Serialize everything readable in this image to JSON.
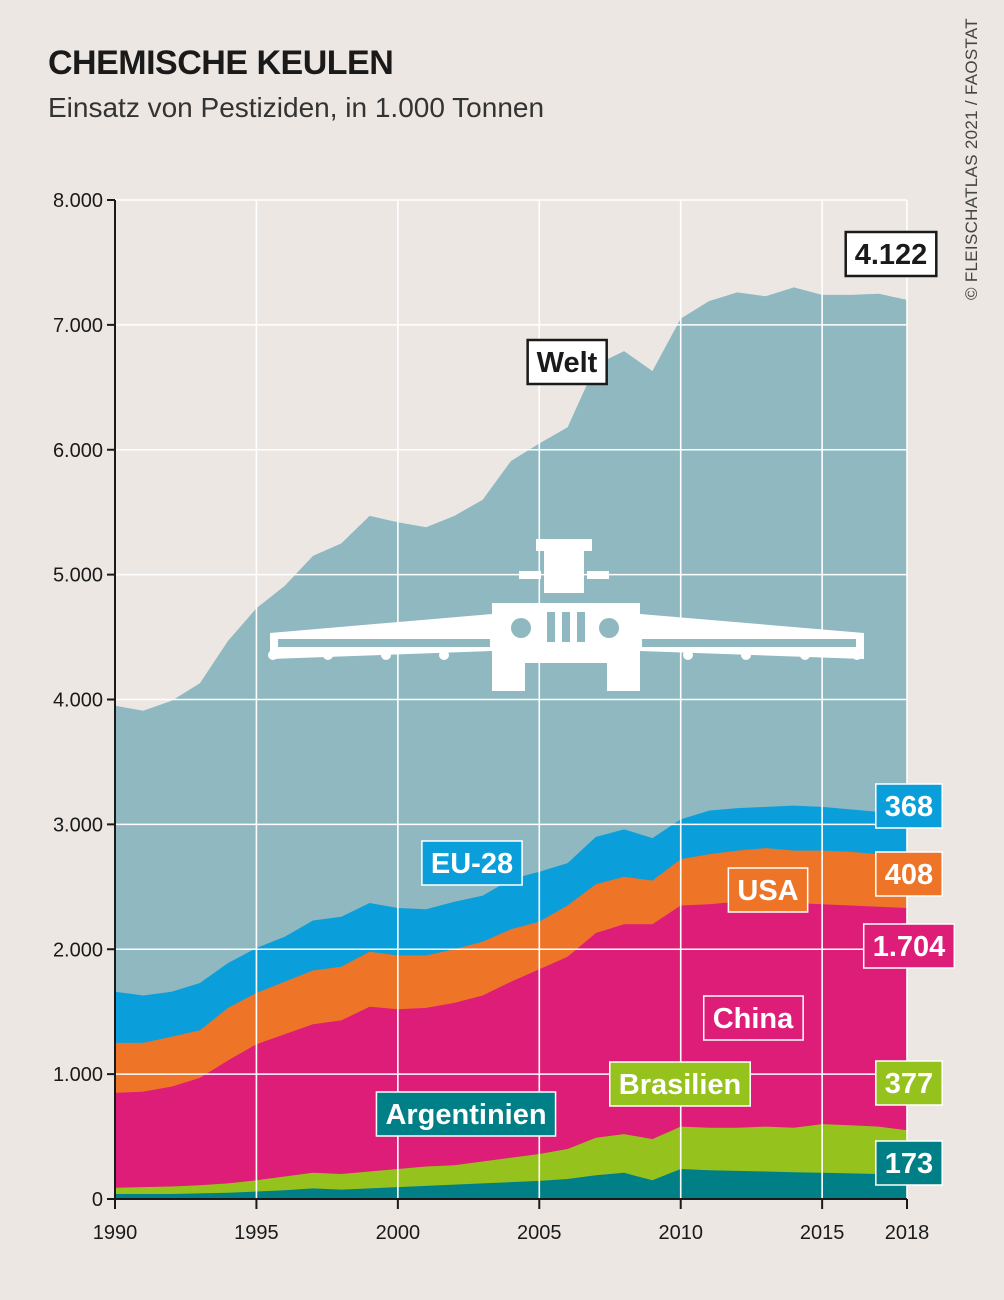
{
  "header": {
    "title": "CHEMISCHE KEULEN",
    "subtitle": "Einsatz von Pestiziden, in 1.000 Tonnen",
    "credit": "© FLEISCHATLAS 2021 / FAOSTAT"
  },
  "chart_data": {
    "type": "area",
    "stacked": false,
    "x": [
      1990,
      1991,
      1992,
      1993,
      1994,
      1995,
      1996,
      1997,
      1998,
      1999,
      2000,
      2001,
      2002,
      2003,
      2004,
      2005,
      2006,
      2007,
      2008,
      2009,
      2010,
      2011,
      2012,
      2013,
      2014,
      2015,
      2016,
      2017,
      2018
    ],
    "xticks": [
      1990,
      1995,
      2000,
      2005,
      2010,
      2015,
      2018
    ],
    "xtick_labels": [
      "1990",
      "1995",
      "2000",
      "2005",
      "2010",
      "2015",
      "2018"
    ],
    "ylim": [
      0,
      8000
    ],
    "yticks": [
      0,
      1000,
      2000,
      3000,
      4000,
      5000,
      6000,
      7000,
      8000
    ],
    "ytick_labels": [
      "0",
      "1.000",
      "2.000",
      "3.000",
      "4.000",
      "5.000",
      "6.000",
      "7.000",
      "8.000"
    ],
    "grid": true,
    "series": [
      {
        "name": "Welt",
        "color": "#8fb8c1",
        "label_color": "#1a1a1a",
        "label_bg": "#ffffff",
        "end_label": "4.122",
        "values": [
          3950,
          3910,
          3990,
          4130,
          4470,
          4730,
          4910,
          5150,
          5250,
          5470,
          5420,
          5380,
          5470,
          5600,
          5910,
          6050,
          6180,
          6680,
          6790,
          6630,
          7050,
          7190,
          7260,
          7230,
          7300,
          7240,
          7240,
          7250,
          7200
        ]
      },
      {
        "name": "EU-28",
        "color": "#0a9fdb",
        "label_color": "#ffffff",
        "label_bg": "#0a9fdb",
        "end_label": "368",
        "values": [
          1660,
          1630,
          1660,
          1730,
          1890,
          2010,
          2100,
          2230,
          2260,
          2370,
          2330,
          2320,
          2380,
          2430,
          2560,
          2620,
          2690,
          2900,
          2960,
          2890,
          3040,
          3110,
          3130,
          3140,
          3150,
          3140,
          3120,
          3100,
          3090
        ]
      },
      {
        "name": "USA",
        "color": "#ee7528",
        "label_color": "#ffffff",
        "label_bg": "#ee7528",
        "end_label": "408",
        "values": [
          1250,
          1250,
          1300,
          1350,
          1530,
          1650,
          1740,
          1830,
          1860,
          1980,
          1950,
          1950,
          2000,
          2060,
          2160,
          2220,
          2350,
          2520,
          2580,
          2550,
          2720,
          2760,
          2790,
          2810,
          2790,
          2790,
          2780,
          2760,
          2740
        ]
      },
      {
        "name": "China",
        "color": "#dd1d77",
        "label_color": "#ffffff",
        "label_bg": "#dd1d77",
        "end_label": "1.704",
        "values": [
          850,
          860,
          900,
          970,
          1110,
          1240,
          1320,
          1400,
          1430,
          1540,
          1520,
          1530,
          1570,
          1630,
          1740,
          1840,
          1940,
          2130,
          2200,
          2200,
          2350,
          2360,
          2380,
          2380,
          2370,
          2360,
          2350,
          2340,
          2330
        ]
      },
      {
        "name": "Brasilien",
        "color": "#96c21e",
        "label_color": "#ffffff",
        "label_bg": "#96c21e",
        "end_label": "377",
        "values": [
          90,
          95,
          100,
          110,
          125,
          150,
          180,
          210,
          200,
          220,
          240,
          260,
          270,
          300,
          330,
          360,
          400,
          490,
          520,
          480,
          580,
          570,
          570,
          580,
          570,
          600,
          590,
          580,
          550
        ]
      },
      {
        "name": "Argentinien",
        "color": "#007f86",
        "label_color": "#ffffff",
        "label_bg": "#007f86",
        "end_label": "173",
        "values": [
          40,
          40,
          40,
          45,
          50,
          60,
          70,
          85,
          75,
          85,
          95,
          105,
          115,
          125,
          135,
          145,
          160,
          190,
          210,
          150,
          240,
          230,
          225,
          220,
          215,
          210,
          205,
          200,
          190
        ]
      }
    ]
  }
}
